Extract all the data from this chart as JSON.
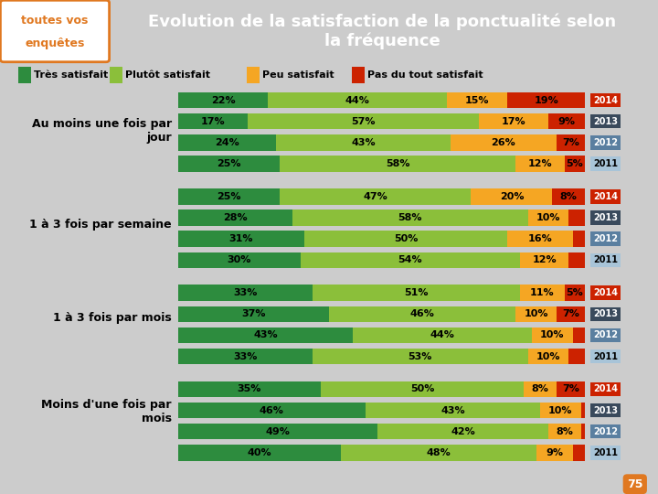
{
  "title": "Evolution de la satisfaction de la ponctualité selon\nla fréquence",
  "header_bg": "#E07820",
  "logo_text1": "toutes vos",
  "logo_text2": "enquêtes",
  "bg_color": "#CCCCCC",
  "legend": [
    "Très satisfait",
    "Plutôt satisfait",
    "Peu satisfait",
    "Pas du tout satisfait"
  ],
  "legend_colors": [
    "#2D8C3E",
    "#8BBF3A",
    "#F5A623",
    "#CC2200"
  ],
  "groups": [
    {
      "label": "Au moins une fois par\njour",
      "rows": [
        {
          "year": "2014",
          "vals": [
            22,
            44,
            15,
            19
          ]
        },
        {
          "year": "2013",
          "vals": [
            17,
            57,
            17,
            9
          ]
        },
        {
          "year": "2012",
          "vals": [
            24,
            43,
            26,
            7
          ]
        },
        {
          "year": "2011",
          "vals": [
            25,
            58,
            12,
            5
          ]
        }
      ]
    },
    {
      "label": "1 à 3 fois par semaine",
      "rows": [
        {
          "year": "2014",
          "vals": [
            25,
            47,
            20,
            8
          ]
        },
        {
          "year": "2013",
          "vals": [
            28,
            58,
            10,
            4
          ]
        },
        {
          "year": "2012",
          "vals": [
            31,
            50,
            16,
            3
          ]
        },
        {
          "year": "2011",
          "vals": [
            30,
            54,
            12,
            4
          ]
        }
      ]
    },
    {
      "label": "1 à 3 fois par mois",
      "rows": [
        {
          "year": "2014",
          "vals": [
            33,
            51,
            11,
            5
          ]
        },
        {
          "year": "2013",
          "vals": [
            37,
            46,
            10,
            7
          ]
        },
        {
          "year": "2012",
          "vals": [
            43,
            44,
            10,
            3
          ]
        },
        {
          "year": "2011",
          "vals": [
            33,
            53,
            10,
            4
          ]
        }
      ]
    },
    {
      "label": "Moins d'une fois par\nmois",
      "rows": [
        {
          "year": "2014",
          "vals": [
            35,
            50,
            8,
            7
          ]
        },
        {
          "year": "2013",
          "vals": [
            46,
            43,
            10,
            1
          ]
        },
        {
          "year": "2012",
          "vals": [
            49,
            42,
            8,
            1
          ]
        },
        {
          "year": "2011",
          "vals": [
            40,
            48,
            9,
            3
          ]
        }
      ]
    }
  ],
  "bar_colors": [
    "#2D8C3E",
    "#8BBF3A",
    "#F5A623",
    "#CC2200"
  ],
  "year_colors": {
    "2014": "#CC2200",
    "2013": "#3A4A5C",
    "2012": "#5A7FA0",
    "2011": "#A8C4D8"
  },
  "year_text_colors": {
    "2014": "white",
    "2013": "white",
    "2012": "white",
    "2011": "black"
  },
  "bar_height": 0.75,
  "bar_text_fontsize": 8,
  "year_label_fontsize": 7,
  "group_label_fontsize": 9
}
